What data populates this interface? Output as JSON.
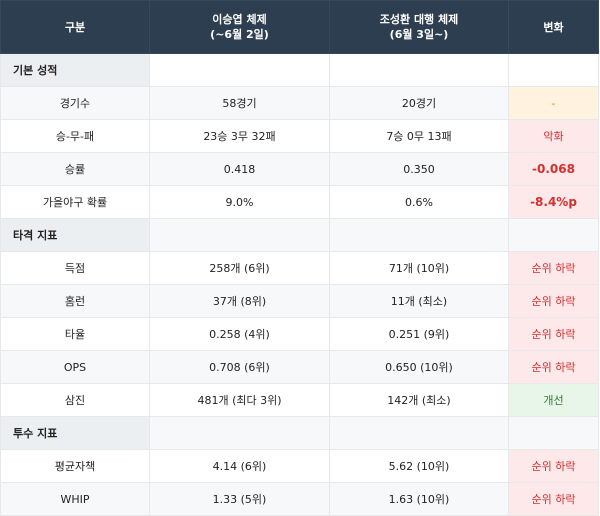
{
  "header": {
    "col0": "구분",
    "col1_line1": "이승엽 체제",
    "col1_line2": "(~6월 2일)",
    "col2_line1": "조성환 대행 체제",
    "col2_line2": "(6월 3일~)",
    "col3": "변화"
  },
  "sections": [
    {
      "title": "기본 성적",
      "rows": [
        {
          "label": "경기수",
          "before": "58경기",
          "after": "20경기",
          "change": "-",
          "change_type": "neutral"
        },
        {
          "label": "승-무-패",
          "before": "23승 3무 32패",
          "after": "7승 0무 13패",
          "change": "악화",
          "change_type": "bad"
        },
        {
          "label": "승률",
          "before": "0.418",
          "after": "0.350",
          "change": "-0.068",
          "change_type": "bad-bold"
        },
        {
          "label": "가을야구 확률",
          "before": "9.0%",
          "after": "0.6%",
          "change": "-8.4%p",
          "change_type": "bad-bold"
        }
      ]
    },
    {
      "title": "타격 지표",
      "rows": [
        {
          "label": "득점",
          "before": "258개 (6위)",
          "after": "71개 (10위)",
          "change": "순위 하락",
          "change_type": "bad"
        },
        {
          "label": "홈런",
          "before": "37개 (8위)",
          "after": "11개 (최소)",
          "change": "순위 하락",
          "change_type": "bad"
        },
        {
          "label": "타율",
          "before": "0.258 (4위)",
          "after": "0.251 (9위)",
          "change": "순위 하락",
          "change_type": "bad"
        },
        {
          "label": "OPS",
          "before": "0.708 (6위)",
          "after": "0.650 (10위)",
          "change": "순위 하락",
          "change_type": "bad"
        },
        {
          "label": "삼진",
          "before": "481개 (최다 3위)",
          "after": "142개 (최소)",
          "change": "개선",
          "change_type": "good"
        }
      ]
    },
    {
      "title": "투수 지표",
      "rows": [
        {
          "label": "평균자책",
          "before": "4.14 (6위)",
          "after": "5.62 (10위)",
          "change": "순위 하락",
          "change_type": "bad"
        },
        {
          "label": "WHIP",
          "before": "1.33 (5위)",
          "after": "1.63 (10위)",
          "change": "순위 하락",
          "change_type": "bad"
        }
      ]
    }
  ],
  "colors": {
    "header_bg": "#2c3e50",
    "section_bg": "#eceff1",
    "stripe_bg": "#f7f8fa",
    "neutral_bg": "#fff3e0",
    "neutral_text": "#e67e22",
    "bad_bg": "#fde8ea",
    "bad_text": "#d32f2f",
    "good_bg": "#e8f5e9",
    "good_text": "#2e7d32"
  }
}
